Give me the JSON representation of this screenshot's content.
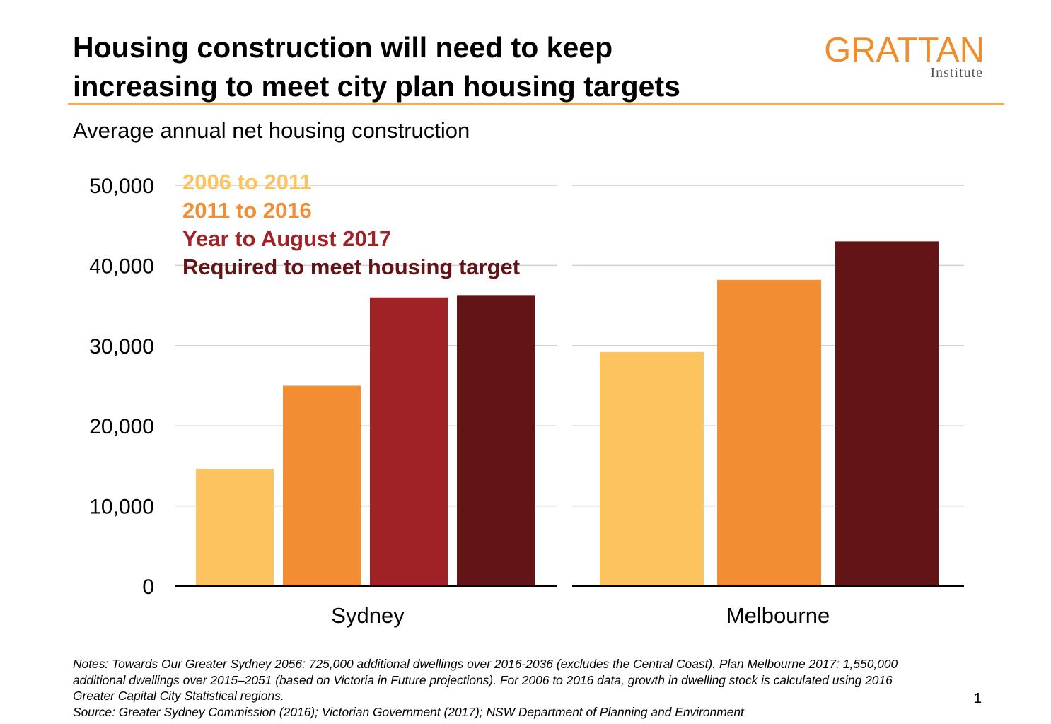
{
  "title_lines": [
    "Housing construction will need to keep",
    "increasing to meet city plan housing targets"
  ],
  "logo": {
    "name": "GRATTAN",
    "sub": "Institute",
    "color": "#F18C2D"
  },
  "subtitle": "Average annual net housing construction",
  "chart_data": {
    "type": "bar",
    "title": "Average annual net housing construction",
    "xlabel": "",
    "ylabel": "",
    "categories": [
      "Sydney",
      "Melbourne"
    ],
    "series": [
      {
        "name": "2006 to 2011",
        "color": "#FDC35E",
        "values": [
          14600,
          29200
        ]
      },
      {
        "name": "2011 to 2016",
        "color": "#F28D34",
        "values": [
          25000,
          38200
        ]
      },
      {
        "name": "Year to August 2017",
        "color": "#A12226",
        "values": [
          36000,
          null
        ]
      },
      {
        "name": "Required to meet housing target",
        "color": "#621417",
        "values": [
          36300,
          43000
        ]
      }
    ],
    "ylim": [
      0,
      50000
    ],
    "yticks": [
      0,
      10000,
      20000,
      30000,
      40000,
      50000
    ],
    "ytick_labels": [
      "0",
      "10,000",
      "20,000",
      "30,000",
      "40,000",
      "50,000"
    ],
    "grid": true,
    "legend_position": "top-left"
  },
  "notes": {
    "text": "Notes: Towards Our Greater Sydney 2056: 725,000 additional dwellings over 2016-2036 (excludes the Central Coast). Plan Melbourne 2017: 1,550,000 additional dwellings over 2015–2051 (based on Victoria in Future projections). For 2006 to 2016 data, growth in dwelling stock is calculated using 2016 Greater Capital City Statistical regions.",
    "source": "Source: Greater Sydney Commission (2016); Victorian Government (2017); NSW Department of Planning and Environment"
  },
  "page_number": "1"
}
